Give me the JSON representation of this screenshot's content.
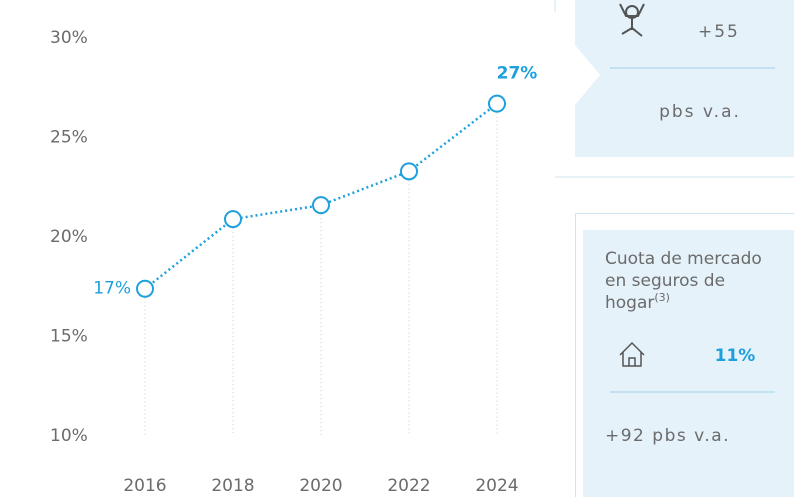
{
  "chart_data": {
    "type": "line",
    "categories": [
      "2016",
      "2018",
      "2020",
      "2022",
      "2024"
    ],
    "values": [
      17.4,
      20.9,
      21.6,
      23.3,
      26.7
    ],
    "value_labels": [
      "17%",
      null,
      null,
      null,
      "27%"
    ],
    "color": "#1ea0dc",
    "ylim": [
      10,
      30
    ],
    "yticks": [
      {
        "value": 10,
        "label": "10%"
      },
      {
        "value": 15,
        "label": "15%"
      },
      {
        "value": 20,
        "label": "20%"
      },
      {
        "value": 25,
        "label": "25%"
      },
      {
        "value": 30,
        "label": "30%"
      }
    ]
  },
  "panels": [
    {
      "value": "+55",
      "note": "pbs v.a."
    },
    {
      "title_lines": [
        "Cuota de mercado",
        "en seguros de",
        "hogar"
      ],
      "footnote": "(3)",
      "value": "11%",
      "note": "+92 pbs v.a."
    }
  ]
}
